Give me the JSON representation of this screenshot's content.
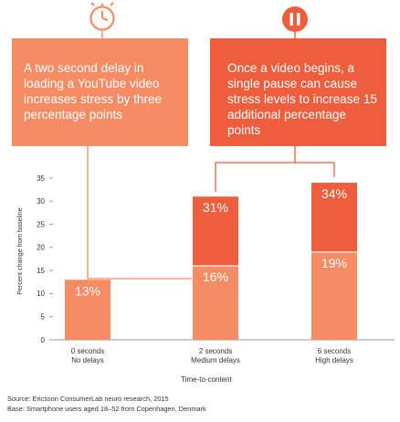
{
  "colors": {
    "light": "#F58C64",
    "dark": "#EE5E3D",
    "connector": "#EE5E3D",
    "axis": "#999999",
    "text": "#333333"
  },
  "icons": [
    "clock-icon",
    "pause-icon"
  ],
  "callouts": [
    {
      "text": "A two second delay in loading a YouTube video increases stress by three percentage points"
    },
    {
      "text": "Once a video begins, a single pause can cause stress levels to increase 15 additional percentage points"
    }
  ],
  "chart_data": {
    "type": "bar",
    "stacked": true,
    "categories": [
      [
        "0 seconds",
        "No delays"
      ],
      [
        "2 seconds",
        "Medium delays"
      ],
      [
        "6 seconds",
        "High delays"
      ]
    ],
    "series": [
      {
        "values": [
          13,
          16,
          19
        ]
      },
      {
        "values": [
          0,
          15,
          15
        ]
      }
    ],
    "totals": [
      13,
      31,
      34
    ],
    "data_labels": [
      [
        "13%"
      ],
      [
        "16%",
        "31%"
      ],
      [
        "19%",
        "34%"
      ]
    ],
    "xlabel": "Time-to-content",
    "ylabel": "Percent change from baseline",
    "ylim": [
      0,
      35
    ],
    "yticks": [
      0,
      5,
      10,
      15,
      20,
      25,
      30,
      35
    ],
    "grid": false
  },
  "footer": {
    "source": "Source: Ericsson ConsumerLab neuro research, 2015",
    "base": "Base: Smartphone users aged 18–52 from Copenhagen, Denmark"
  }
}
